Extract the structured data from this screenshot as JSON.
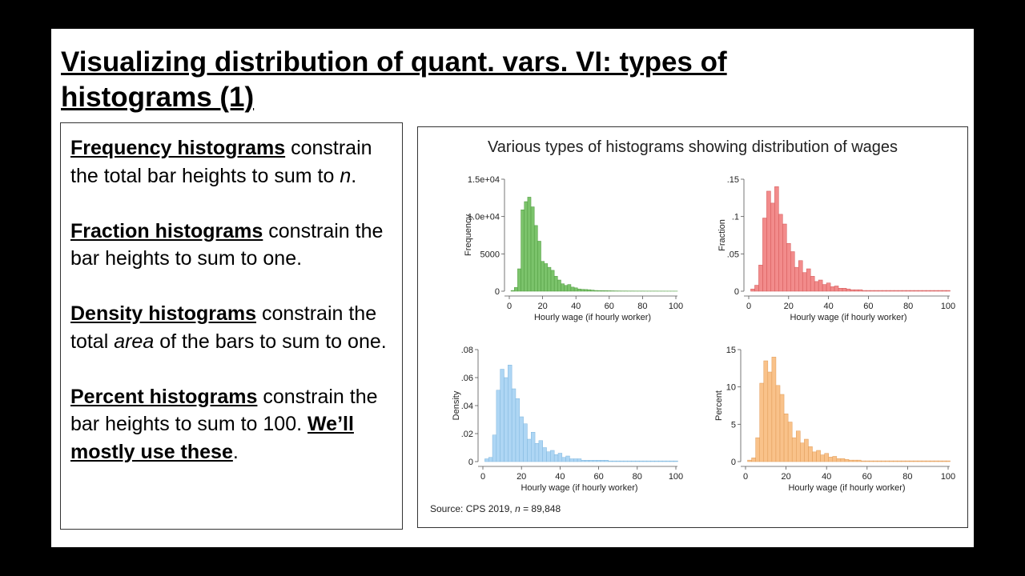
{
  "slide": {
    "title": "Visualizing distribution of quant. vars. VI: types of histograms (1)",
    "paragraphs": [
      {
        "parts": [
          {
            "t": "Frequency histograms",
            "s": "kw"
          },
          {
            "t": " constrain the total bar heights to sum to "
          },
          {
            "t": "n",
            "s": "it"
          },
          {
            "t": "."
          }
        ]
      },
      {
        "parts": [
          {
            "t": "Fraction histograms",
            "s": "kw"
          },
          {
            "t": " constrain the bar heights to sum to one."
          }
        ]
      },
      {
        "parts": [
          {
            "t": "Density histograms",
            "s": "kw"
          },
          {
            "t": " constrain the total "
          },
          {
            "t": "area",
            "s": "it"
          },
          {
            "t": " of the bars to sum to one."
          }
        ]
      },
      {
        "parts": [
          {
            "t": "Percent histograms",
            "s": "kw"
          },
          {
            "t": " constrain the bar heights to sum to 100. "
          },
          {
            "t": "We’ll mostly use these",
            "s": "kw"
          },
          {
            "t": "."
          }
        ]
      }
    ]
  },
  "figure": {
    "title": "Various types of histograms showing distribution of wages",
    "source_prefix": "Source: CPS 2019, ",
    "source_n": "n",
    "source_suffix": " = 89,848"
  },
  "chart_data": [
    {
      "type": "bar",
      "ylabel": "Frequency",
      "xlabel": "Hourly wage (if hourly worker)",
      "color": "#7bc36b",
      "stroke": "#4e9a3e",
      "xlim": [
        0,
        100
      ],
      "ylim": [
        0,
        15000
      ],
      "xticks": [
        0,
        20,
        40,
        60,
        80,
        100
      ],
      "yticks": [
        0,
        5000,
        10000,
        15000
      ],
      "ytick_labels": [
        "0",
        "5000",
        "1.0e+04",
        "1.5e+04"
      ],
      "bin_start": 1,
      "bin_width": 2,
      "values": [
        100,
        500,
        3000,
        10900,
        12000,
        12600,
        11300,
        8800,
        6700,
        4000,
        3700,
        3200,
        2800,
        2000,
        1500,
        1000,
        780,
        900,
        550,
        450,
        300,
        250,
        230,
        200,
        150,
        100,
        90,
        80,
        70,
        60,
        50,
        40,
        35,
        30,
        30,
        25,
        25,
        20,
        20,
        20,
        15,
        15,
        15,
        15,
        12,
        12,
        10,
        10,
        10,
        10
      ]
    },
    {
      "type": "bar",
      "ylabel": "Fraction",
      "xlabel": "Hourly wage (if hourly worker)",
      "color": "#f28b8b",
      "stroke": "#d25555",
      "xlim": [
        0,
        100
      ],
      "ylim": [
        0,
        0.15
      ],
      "xticks": [
        0,
        20,
        40,
        60,
        80,
        100
      ],
      "yticks": [
        0,
        0.05,
        0.1,
        0.15
      ],
      "ytick_labels": [
        "0",
        ".05",
        ".1",
        ".15"
      ],
      "bin_start": 1,
      "bin_width": 2,
      "values": [
        0.003,
        0.008,
        0.035,
        0.098,
        0.134,
        0.118,
        0.14,
        0.103,
        0.09,
        0.064,
        0.053,
        0.032,
        0.041,
        0.025,
        0.03,
        0.02,
        0.013,
        0.015,
        0.009,
        0.011,
        0.006,
        0.007,
        0.004,
        0.004,
        0.003,
        0.002,
        0.002,
        0.002,
        0.001,
        0.001,
        0.001,
        0.001,
        0.001,
        0.001,
        0.001,
        0.001,
        0.001,
        0.001,
        0.001,
        0.001,
        0.001,
        0.001,
        0.001,
        0.001,
        0.001,
        0.001,
        0.001,
        0.001,
        0.001,
        0.001
      ]
    },
    {
      "type": "bar",
      "ylabel": "Density",
      "xlabel": "Hourly wage (if hourly worker)",
      "color": "#aed6f4",
      "stroke": "#7fb6de",
      "xlim": [
        0,
        100
      ],
      "ylim": [
        0,
        0.08
      ],
      "xticks": [
        0,
        20,
        40,
        60,
        80,
        100
      ],
      "yticks": [
        0,
        0.02,
        0.04,
        0.06,
        0.08
      ],
      "ytick_labels": [
        "0",
        ".02",
        ".04",
        ".06",
        ".08"
      ],
      "bin_start": 1,
      "bin_width": 2,
      "values": [
        0.002,
        0.003,
        0.019,
        0.051,
        0.066,
        0.06,
        0.069,
        0.052,
        0.045,
        0.032,
        0.027,
        0.016,
        0.021,
        0.013,
        0.015,
        0.01,
        0.007,
        0.008,
        0.005,
        0.006,
        0.003,
        0.004,
        0.002,
        0.002,
        0.002,
        0.001,
        0.001,
        0.001,
        0.001,
        0.001,
        0.001,
        0.001,
        0.0005,
        0.0005,
        0.0005,
        0.0005,
        0.0005,
        0.0005,
        0.0005,
        0.0005,
        0.0005,
        0.0005,
        0.0005,
        0.0005,
        0.0005,
        0.0005,
        0.0005,
        0.0005,
        0.0005,
        0.0005
      ]
    },
    {
      "type": "bar",
      "ylabel": "Percent",
      "xlabel": "Hourly wage (if hourly worker)",
      "color": "#f9c28a",
      "stroke": "#e09a55",
      "xlim": [
        0,
        100
      ],
      "ylim": [
        0,
        15
      ],
      "xticks": [
        0,
        20,
        40,
        60,
        80,
        100
      ],
      "yticks": [
        0,
        5,
        10,
        15
      ],
      "ytick_labels": [
        "0",
        "5",
        "10",
        "15"
      ],
      "bin_start": 1,
      "bin_width": 2,
      "values": [
        0.2,
        0.5,
        3.2,
        10.5,
        13.5,
        12,
        14,
        10.2,
        9,
        6.4,
        5.3,
        3.2,
        4.1,
        2.5,
        3,
        2,
        1.3,
        1.5,
        0.9,
        1.1,
        0.6,
        0.7,
        0.4,
        0.4,
        0.3,
        0.2,
        0.2,
        0.2,
        0.1,
        0.1,
        0.1,
        0.1,
        0.1,
        0.1,
        0.1,
        0.1,
        0.1,
        0.1,
        0.1,
        0.1,
        0.1,
        0.1,
        0.1,
        0.1,
        0.1,
        0.1,
        0.1,
        0.1,
        0.1,
        0.1
      ]
    }
  ]
}
